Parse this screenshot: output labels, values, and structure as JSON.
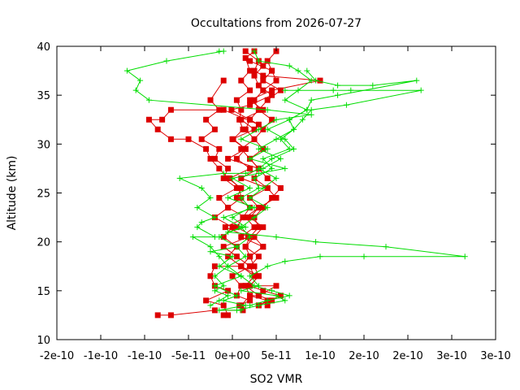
{
  "chart_data": {
    "type": "line",
    "title": "Occultations from 2026-07-27",
    "xlabel": "SO2 VMR",
    "ylabel": "Altitude (km)",
    "xlim": [
      -2e-10,
      3e-10
    ],
    "ylim": [
      10,
      40
    ],
    "x_ticks": [
      -2e-10,
      -1.5e-10,
      -1e-10,
      -5e-11,
      0,
      5e-11,
      1e-10,
      1.5e-10,
      2e-10,
      2.5e-10,
      3e-10
    ],
    "x_tick_labels": [
      "-2e-10",
      "-1e-10",
      "-1e-10",
      "-5e-11",
      "0e+00",
      "5e-11",
      "1e-10",
      "2e-10",
      "2e-10",
      "3e-10",
      "3e-10"
    ],
    "y_ticks": [
      10,
      15,
      20,
      25,
      30,
      35,
      40
    ],
    "y_tick_labels": [
      "10",
      "15",
      "20",
      "25",
      "30",
      "35",
      "40"
    ],
    "grid": false,
    "colors": {
      "red": "#dd0000",
      "green": "#00dd00",
      "axis": "#000000"
    },
    "series": [
      {
        "color": "red",
        "marker": "square",
        "x": [
          2.5e-11,
          1.5e-11,
          2e-11,
          1e-11,
          2e-11,
          5e-12,
          1e-11,
          8e-12,
          1.2e-11,
          1e-12,
          1.5e-11,
          5e-12,
          2e-11,
          -3e-12,
          8e-12,
          1e-11,
          -5e-12,
          1.5e-11,
          -8e-12,
          1.8e-11,
          -1e-11,
          5e-12,
          2e-11,
          0,
          1e-11,
          5e-12,
          2e-11,
          8e-12,
          1.2e-11,
          -2e-11,
          -7e-11,
          -8.5e-11
        ],
        "y": [
          39.5,
          38.8,
          37.5,
          36.5,
          35.5,
          34.5,
          33.5,
          32.5,
          31.5,
          30.5,
          29.5,
          28.5,
          27.5,
          26.5,
          25.5,
          24.5,
          23.5,
          22.5,
          21.5,
          20.5,
          19.5,
          18.5,
          17.5,
          16.5,
          15.5,
          14.5,
          14,
          13.5,
          13,
          13,
          12.5,
          12.5
        ]
      },
      {
        "color": "red",
        "marker": "square",
        "x": [
          5e-11,
          4e-11,
          4.5e-11,
          5e-11,
          3.5e-11,
          2.5e-11,
          3e-11,
          2e-11,
          1.5e-11,
          2.5e-11,
          1e-11,
          2e-11,
          3e-11,
          2.5e-11,
          4e-11,
          5e-11,
          3e-11,
          2e-11,
          3.5e-11,
          2.5e-11,
          1.5e-11,
          2e-11,
          2.5e-11,
          3e-11,
          2e-11,
          5e-11,
          3e-11,
          4.5e-11,
          4e-11
        ],
        "y": [
          39.5,
          38.5,
          37.5,
          36.5,
          35.5,
          34.5,
          33.5,
          32.5,
          31.5,
          30.5,
          29.5,
          28.5,
          27.5,
          26.5,
          25.5,
          24.5,
          23.5,
          22.5,
          21.5,
          20.5,
          19.5,
          18.5,
          17.5,
          16.5,
          15.5,
          15.5,
          14.5,
          14,
          13.5
        ]
      },
      {
        "color": "red",
        "marker": "square",
        "x": [
          1.5e-11,
          3e-11,
          2.5e-11,
          3.5e-11,
          1e-10,
          4.5e-11,
          2e-11,
          3.5e-11,
          1e-11,
          2.5e-11,
          0,
          1.5e-11,
          -5e-12,
          3e-11,
          1e-11,
          4e-11,
          2e-11,
          3e-11,
          1.5e-11,
          2.5e-11,
          1e-11,
          3.5e-11,
          2e-11,
          1e-11,
          2.5e-11,
          1.5e-11,
          2e-11,
          1e-11
        ],
        "y": [
          39.5,
          38.5,
          37.5,
          37,
          36.5,
          35.5,
          34.5,
          33.5,
          32.5,
          31.5,
          30.5,
          29.5,
          28.5,
          27.5,
          26.5,
          25.5,
          24.5,
          23.5,
          22.5,
          21.5,
          20.5,
          19.5,
          18.5,
          17.5,
          16.5,
          15.5,
          14.5,
          13.5
        ]
      },
      {
        "color": "red",
        "marker": "square",
        "x": [
          3.5e-11,
          2.5e-11,
          3e-11,
          4.5e-11,
          2e-11,
          -1e-12,
          2e-11,
          3e-11,
          -1e-11,
          -7e-11,
          -8e-11,
          -9.5e-11,
          -8.5e-11,
          -7e-11,
          -5e-11,
          -3e-11,
          -2.5e-11,
          -1.5e-11,
          -5e-12,
          1e-11,
          5e-12,
          2e-11,
          1.2e-11,
          5e-12,
          2.5e-11,
          3.5e-11,
          2e-11,
          1e-11,
          3e-11,
          2e-11,
          3.5e-11,
          5.5e-11,
          3e-11
        ],
        "y": [
          38,
          37,
          36,
          35,
          34,
          33.5,
          32.5,
          32,
          33.5,
          33.5,
          32.5,
          32.5,
          31.5,
          30.5,
          30.5,
          29.5,
          28.5,
          27.5,
          26.5,
          25.5,
          24.5,
          23.5,
          22.5,
          21.5,
          20.5,
          19.5,
          18.5,
          17.5,
          16.5,
          15.5,
          15,
          14.5,
          13.5
        ]
      },
      {
        "color": "red",
        "marker": "square",
        "x": [
          -1e-11,
          -2.5e-11,
          -1.5e-11,
          -3e-11,
          -2e-11,
          -3.5e-11,
          -1.5e-11,
          -2e-11,
          -5e-12,
          -1e-11,
          5e-12,
          -1.5e-11,
          -5e-12,
          -2e-11,
          0,
          -1e-11,
          5e-12,
          -5e-12,
          1e-11,
          -2e-11,
          -2.5e-11,
          -2e-11,
          -5e-12,
          -3e-11,
          -1e-11,
          -5e-12,
          -1e-11
        ],
        "y": [
          36.5,
          34.5,
          33.5,
          32.5,
          31.5,
          30.5,
          29.5,
          28.5,
          27.5,
          26.5,
          25.5,
          24.5,
          23.5,
          22.5,
          21.5,
          20.5,
          19.5,
          18.5,
          17.5,
          17.5,
          16.5,
          15.5,
          15,
          14,
          13.5,
          12.5,
          12.5
        ]
      },
      {
        "color": "red",
        "marker": "square",
        "x": [
          2e-11,
          4.5e-11,
          3.5e-11,
          5.5e-11,
          4e-11,
          3e-11,
          4.5e-11,
          3.5e-11,
          2.5e-11,
          3.5e-11,
          2e-11,
          3e-11,
          4e-11,
          5.5e-11,
          4.5e-11,
          3.5e-11,
          2.5e-11,
          3e-11,
          2e-11,
          1.5e-11,
          3e-11,
          2e-11,
          2.5e-11,
          1.5e-11,
          3e-11,
          2e-11,
          4e-11,
          3e-11
        ],
        "y": [
          38.5,
          37.5,
          36.5,
          35.5,
          34.5,
          33.5,
          32.5,
          31.5,
          30.5,
          29.5,
          28.5,
          27.5,
          26.5,
          25.5,
          24.5,
          23.5,
          22.5,
          21.5,
          20.5,
          19.5,
          18.5,
          17.5,
          16.5,
          15.5,
          14.5,
          14.5,
          14,
          13.5
        ]
      },
      {
        "color": "green",
        "marker": "plus",
        "x": [
          -1.5e-11,
          -1e-11,
          -7.5e-11,
          -1.2e-10,
          -1.05e-10,
          -1.1e-10,
          -9.5e-11,
          4e-11,
          9e-11,
          5e-11,
          3e-11,
          1e-11,
          4e-11,
          2e-11,
          6e-11,
          3e-11,
          0,
          2e-11,
          -5e-12,
          2.5e-11,
          -1e-11,
          1e-11,
          -1.5e-11,
          5e-12,
          -2.5e-11,
          0,
          -1.5e-11,
          1e-11,
          -2e-11,
          5e-12,
          -1e-11,
          1.5e-11,
          -1.5e-11,
          1e-11
        ],
        "y": [
          39.5,
          39.5,
          38.5,
          37.5,
          36.5,
          35.5,
          34.5,
          33.5,
          33,
          32.5,
          31.5,
          30.5,
          29.5,
          28.5,
          27.5,
          27,
          26.5,
          25.5,
          24.5,
          23.5,
          22.5,
          21.5,
          20.5,
          19.5,
          19,
          18.5,
          17.5,
          16.5,
          15.5,
          14.5,
          14,
          13.5,
          13,
          13
        ]
      },
      {
        "color": "green",
        "marker": "plus",
        "x": [
          2.5e-11,
          3e-11,
          6.5e-11,
          7.5e-11,
          9e-11,
          7.5e-11,
          6e-11,
          8.5e-11,
          6.5e-11,
          4e-11,
          6e-11,
          7e-11,
          4.5e-11,
          3e-11,
          5e-11,
          3.5e-11,
          2e-11,
          4e-11,
          2.5e-11,
          1e-11,
          2e-11,
          5e-12,
          1.5e-11,
          -5e-12,
          1e-11,
          2.5e-11,
          4.5e-11,
          6.5e-11,
          4e-11,
          2e-11
        ],
        "y": [
          39.5,
          38.5,
          38,
          37.5,
          36.5,
          35.5,
          34.5,
          33.5,
          32.5,
          31.5,
          30.5,
          29.5,
          28.5,
          27.5,
          26.5,
          25.5,
          24.5,
          23.5,
          22.5,
          21.5,
          20.5,
          19.5,
          18.5,
          17.5,
          16.5,
          15.5,
          15,
          14.5,
          14,
          13.5
        ]
      },
      {
        "color": "green",
        "marker": "plus",
        "x": [
          8.5e-11,
          9.5e-11,
          1.2e-10,
          1.6e-10,
          2.1e-10,
          1.2e-10,
          9e-11,
          8.5e-11,
          6.5e-11,
          7e-11,
          5.5e-11,
          6.5e-11,
          3.5e-11,
          4.5e-11,
          2.5e-11,
          3e-11,
          1e-11,
          2e-11,
          0,
          1.5e-11,
          -5e-12,
          5e-11,
          9.5e-11,
          1.75e-10,
          2.65e-10,
          1.5e-10,
          1e-10,
          6e-11,
          4e-11,
          2e-11,
          3e-11,
          1e-11,
          5e-11,
          6e-11,
          3e-11,
          5e-12
        ],
        "y": [
          37.5,
          36.5,
          36,
          36,
          36.5,
          35,
          34.5,
          33.5,
          32.5,
          31.5,
          30.5,
          29.5,
          28.5,
          27.5,
          26.5,
          25.5,
          24.5,
          23.5,
          22.5,
          21.5,
          21,
          20.5,
          20,
          19.5,
          18.5,
          18.5,
          18.5,
          18,
          17.5,
          16.5,
          15.5,
          15,
          14.5,
          14,
          13.5,
          13
        ]
      },
      {
        "color": "green",
        "marker": "plus",
        "x": [
          6e-11,
          1.15e-10,
          1.35e-10,
          2.15e-10,
          1.3e-10,
          9e-11,
          8e-11,
          7e-11,
          5e-11,
          3e-11,
          5.5e-11,
          3.5e-11,
          1.5e-11,
          -1e-11,
          -6e-11,
          -3.5e-11,
          -2.5e-11,
          -4e-11,
          -2e-11,
          -3.5e-11,
          -4e-11,
          -2e-11,
          -4.5e-11,
          -2.5e-11,
          -1.5e-11,
          -5e-12,
          -2e-11,
          -1e-11,
          -2e-11,
          -5e-12,
          -1.5e-11,
          -2.5e-11
        ],
        "y": [
          35.5,
          35.5,
          35.5,
          35.5,
          34,
          33.5,
          32.5,
          31.5,
          30.5,
          29.5,
          28.5,
          27.5,
          27,
          27,
          26.5,
          25.5,
          24.5,
          23.5,
          22.5,
          22,
          21.5,
          20.5,
          20.5,
          19.5,
          18.5,
          17.5,
          16.5,
          15.5,
          15,
          14.5,
          14,
          13.5
        ]
      }
    ]
  }
}
